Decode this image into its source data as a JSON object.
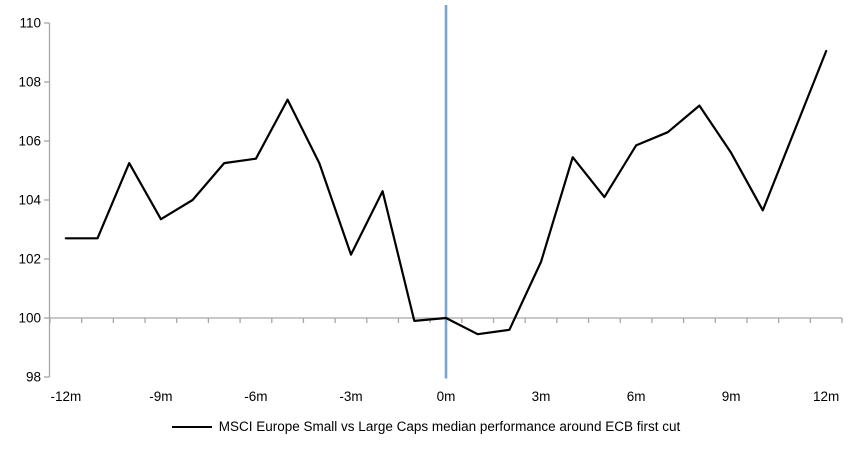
{
  "chart_data": {
    "type": "line",
    "title": "",
    "legend": "MSCI Europe Small vs Large Caps median performance around ECB first cut",
    "x": [
      -12,
      -11,
      -10,
      -9,
      -8,
      -7,
      -6,
      -5,
      -4,
      -3,
      -2,
      -1,
      0,
      1,
      2,
      3,
      4,
      5,
      6,
      7,
      8,
      9,
      10,
      11,
      12
    ],
    "series": [
      {
        "name": "MSCI Europe Small vs Large Caps median performance around ECB first cut",
        "color": "#000000",
        "values": [
          102.7,
          102.7,
          105.25,
          103.35,
          104.0,
          105.25,
          105.4,
          107.4,
          105.25,
          102.15,
          104.3,
          99.9,
          100.0,
          99.45,
          99.6,
          101.9,
          105.45,
          104.1,
          105.85,
          106.3,
          107.2,
          105.6,
          103.65,
          106.35,
          109.05
        ]
      }
    ],
    "x_tick_labels": [
      "-12m",
      "-9m",
      "-6m",
      "-3m",
      "0m",
      "3m",
      "6m",
      "9m",
      "12m"
    ],
    "x_tick_indices": [
      0,
      3,
      6,
      9,
      12,
      15,
      18,
      21,
      24
    ],
    "y_ticks": [
      98,
      100,
      102,
      104,
      106,
      108,
      110
    ],
    "ylim": [
      98,
      110
    ],
    "baseline_value": 100,
    "event_line_x": 0,
    "grid": "off",
    "legend_position": "bottom",
    "colors": {
      "series_line": "#000000",
      "event_line": "#7AA3CD",
      "axis_line": "#A6A6A6",
      "tick_text": "#000000",
      "background": "#FFFFFF"
    }
  }
}
